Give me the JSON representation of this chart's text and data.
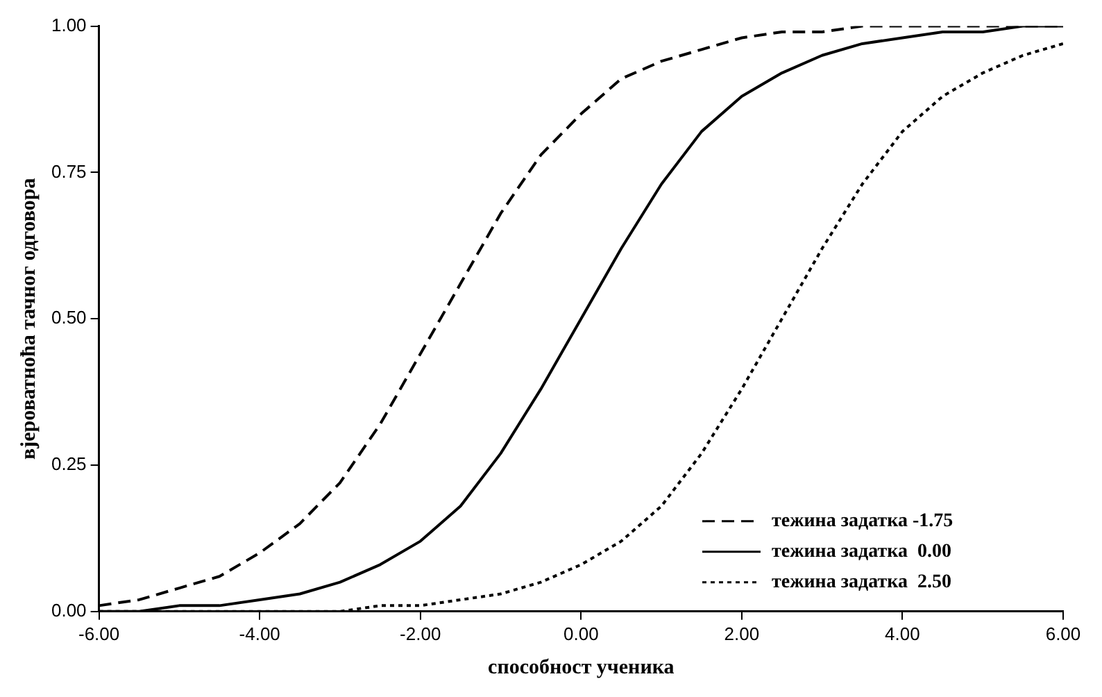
{
  "chart_data": {
    "type": "line",
    "xlabel": "способност ученика",
    "ylabel": "вјероватноћа тачног одговора",
    "x": [
      -6,
      -5.5,
      -5,
      -4.5,
      -4,
      -3.5,
      -3,
      -2.5,
      -2,
      -1.5,
      -1,
      -0.5,
      0,
      0.5,
      1,
      1.5,
      2,
      2.5,
      3,
      3.5,
      4,
      4.5,
      5,
      5.5,
      6
    ],
    "series": [
      {
        "name": "тежина задатка -1.75",
        "color": "#000000",
        "line_style": "dashed",
        "values": [
          0.01,
          0.02,
          0.04,
          0.06,
          0.1,
          0.15,
          0.22,
          0.32,
          0.44,
          0.56,
          0.68,
          0.78,
          0.85,
          0.91,
          0.94,
          0.96,
          0.98,
          0.99,
          0.99,
          1,
          1,
          1,
          1,
          1,
          1
        ]
      },
      {
        "name": "тежина задатка  0.00",
        "color": "#000000",
        "line_style": "solid",
        "values": [
          0,
          0,
          0.01,
          0.01,
          0.02,
          0.03,
          0.05,
          0.08,
          0.12,
          0.18,
          0.27,
          0.38,
          0.5,
          0.62,
          0.73,
          0.82,
          0.88,
          0.92,
          0.95,
          0.97,
          0.98,
          0.99,
          0.99,
          1,
          1
        ]
      },
      {
        "name": "тежина задатка  2.50",
        "color": "#000000",
        "line_style": "dotted",
        "values": [
          0,
          0,
          0,
          0,
          0,
          0,
          0,
          0.01,
          0.01,
          0.02,
          0.03,
          0.05,
          0.08,
          0.12,
          0.18,
          0.27,
          0.38,
          0.5,
          0.62,
          0.73,
          0.82,
          0.88,
          0.92,
          0.95,
          0.97
        ]
      }
    ],
    "xlim": [
      -6,
      6
    ],
    "xticks": [
      {
        "value": -6,
        "label": "-6.00"
      },
      {
        "value": -4,
        "label": "-4.00"
      },
      {
        "value": -2,
        "label": "-2.00"
      },
      {
        "value": 0,
        "label": "0.00"
      },
      {
        "value": 2,
        "label": "2.00"
      },
      {
        "value": 4,
        "label": "4.00"
      },
      {
        "value": 6,
        "label": "6.00"
      }
    ],
    "ylim": [
      0,
      1
    ],
    "yticks": [
      {
        "value": 0,
        "label": "0.00"
      },
      {
        "value": 0.25,
        "label": "0.25"
      },
      {
        "value": 0.5,
        "label": "0.50"
      },
      {
        "value": 0.75,
        "label": "0.75"
      },
      {
        "value": 1,
        "label": "1.00"
      }
    ],
    "grid": false,
    "legend": "bottom right",
    "marker": "none"
  }
}
